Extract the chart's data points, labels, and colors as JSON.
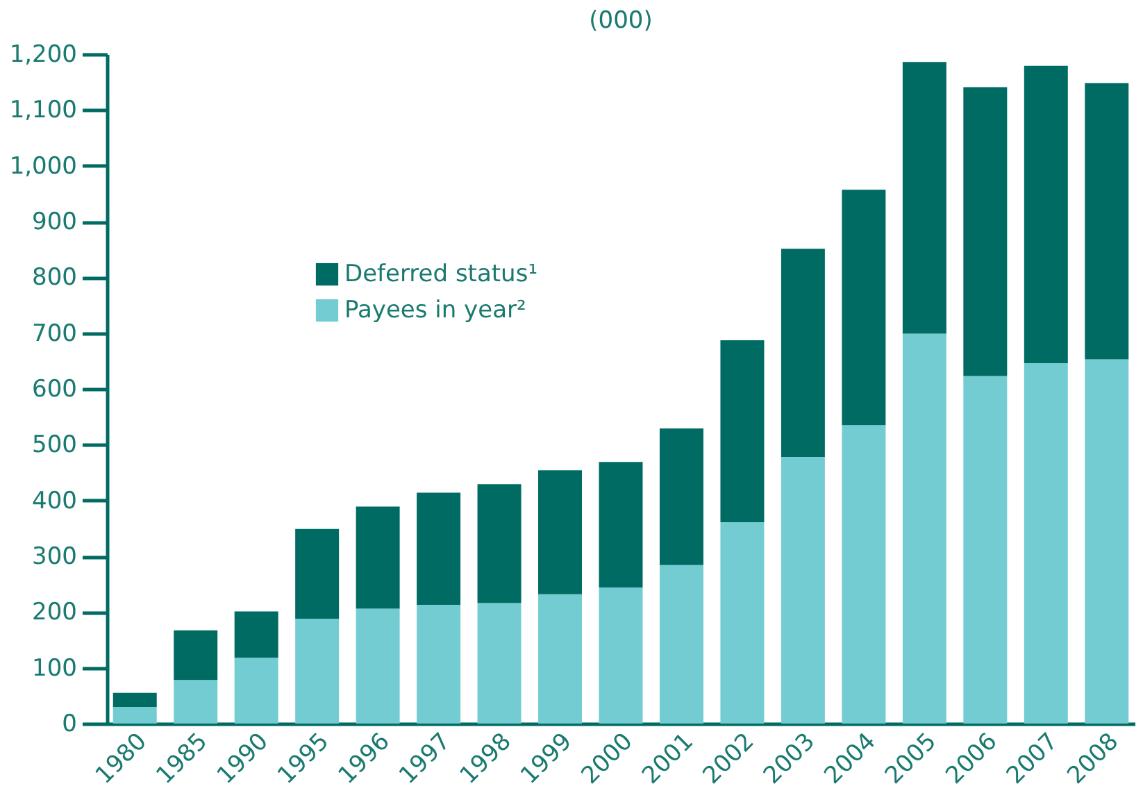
{
  "chart_data": {
    "type": "bar",
    "title": "(000)",
    "categories": [
      "1980",
      "1985",
      "1990",
      "1995",
      "1996",
      "1997",
      "1998",
      "1999",
      "2000",
      "2001",
      "2002",
      "2003",
      "2004",
      "2005",
      "2006",
      "2007",
      "2008"
    ],
    "stacked": true,
    "series": [
      {
        "name": "Payees in year²",
        "color": "#74ccd3",
        "values": [
          30,
          78,
          118,
          188,
          206,
          213,
          216,
          232,
          244,
          284,
          361,
          478,
          535,
          699,
          623,
          646,
          653
        ]
      },
      {
        "name": "Deferred status¹",
        "color": "#006b63",
        "values": [
          25,
          89,
          83,
          161,
          183,
          201,
          213,
          222,
          225,
          245,
          326,
          373,
          422,
          487,
          518,
          533,
          495
        ]
      }
    ],
    "ylim": [
      0,
      1200
    ],
    "yticks": [
      0,
      100,
      200,
      300,
      400,
      500,
      600,
      700,
      800,
      900,
      {
        "value": 1000,
        "label": "1,000"
      },
      {
        "value": 1100,
        "label": "1,100"
      },
      {
        "value": 1200,
        "label": "1,200"
      }
    ],
    "grid": false,
    "legend": "top left"
  }
}
